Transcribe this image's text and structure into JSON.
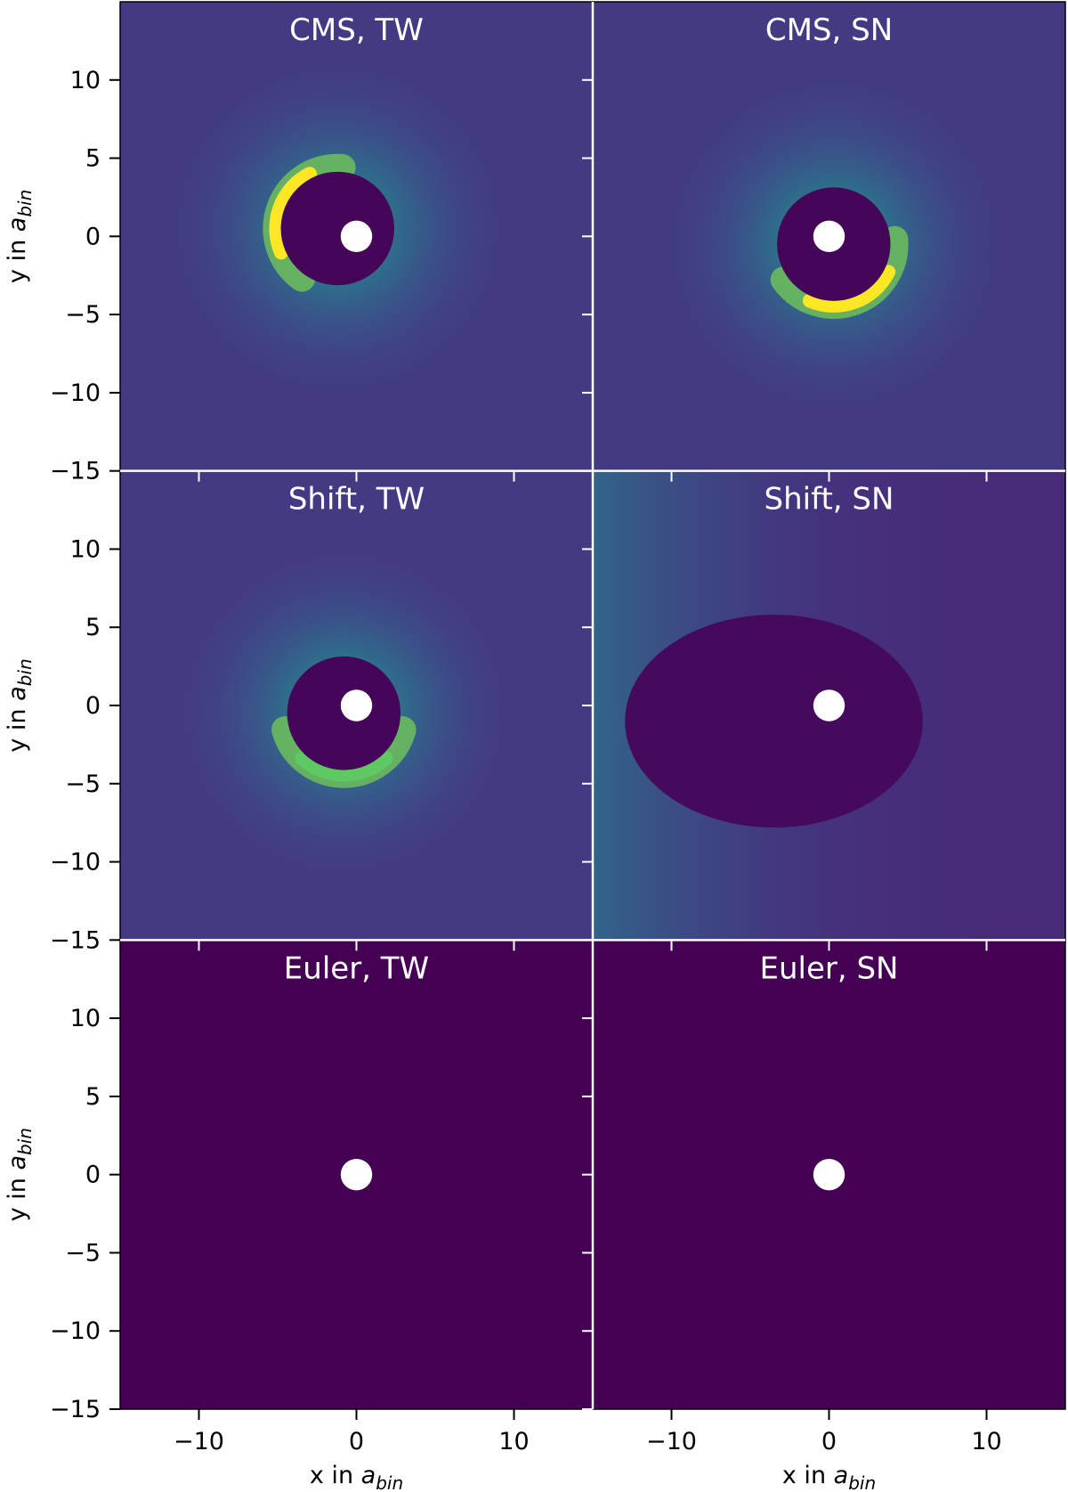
{
  "chart_data": {
    "type": "heatmap",
    "layout": {
      "rows": 3,
      "cols": 2,
      "sharex": true,
      "sharey": true
    },
    "colormap": "viridis",
    "xlim": [
      -15,
      15
    ],
    "ylim": [
      -15,
      15
    ],
    "xticks": [
      -10,
      0,
      10
    ],
    "yticks": [
      -15,
      -10,
      -5,
      0,
      5,
      10
    ],
    "xtick_labels": [
      "−10",
      "0",
      "10"
    ],
    "ytick_labels": [
      "−15",
      "−10",
      "−5",
      "0",
      "5",
      "10"
    ],
    "xlabel": {
      "prefix": "x in ",
      "symbol": "a",
      "subscript": "bin"
    },
    "ylabel": {
      "prefix": "y in ",
      "symbol": "a",
      "subscript": "bin"
    },
    "central_hole": {
      "x": 0,
      "y": 0,
      "radius": 1,
      "color": "#ffffff"
    },
    "panels": [
      {
        "title": "CMS, TW",
        "background": "#433a83",
        "cavity": {
          "cx": -1.2,
          "cy": 0.5,
          "r": 3.6
        },
        "ring": {
          "angle_deg": 160,
          "peak": "#fde725"
        }
      },
      {
        "title": "CMS, SN",
        "background": "#433a83",
        "cavity": {
          "cx": 0.3,
          "cy": -0.5,
          "r": 3.6
        },
        "ring": {
          "angle_deg": 290,
          "peak": "#fde725"
        }
      },
      {
        "title": "Shift, TW",
        "background": "#443983",
        "cavity": {
          "cx": -0.8,
          "cy": -0.5,
          "r": 3.6
        },
        "ring": {
          "angle_deg": 270,
          "peak": "#5ec962"
        }
      },
      {
        "title": "Shift, SN",
        "background": "#472a7a",
        "cavity": {
          "cx": -3.5,
          "cy": -1.0,
          "r": 9.0
        },
        "ring": null
      },
      {
        "title": "Euler, TW",
        "background": "#440154",
        "cavity": null,
        "ring": null
      },
      {
        "title": "Euler, SN",
        "background": "#440154",
        "cavity": null,
        "ring": null
      }
    ]
  }
}
